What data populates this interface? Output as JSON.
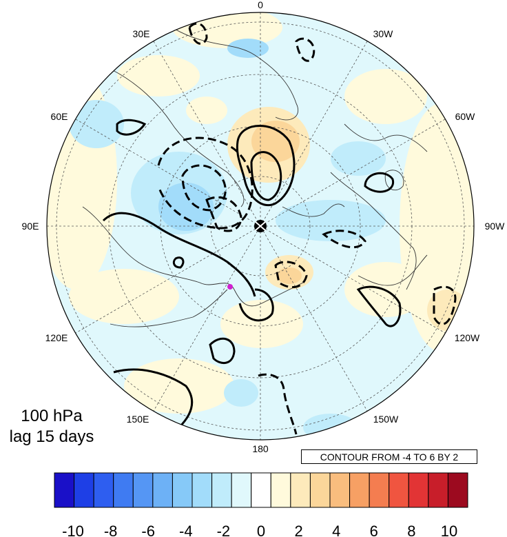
{
  "figure": {
    "title_lines": [
      "100 hPa",
      "lag 15 days"
    ],
    "contour_info": "CONTOUR FROM -4 TO 6 BY 2",
    "projection": "north-polar-stereographic",
    "grid": "dashed meridians every 30 deg, dashed latitude circles",
    "longitude_labels": [
      {
        "text": "0",
        "lon": 0
      },
      {
        "text": "30E",
        "lon": 30
      },
      {
        "text": "60E",
        "lon": 60
      },
      {
        "text": "90E",
        "lon": 90
      },
      {
        "text": "120E",
        "lon": 120
      },
      {
        "text": "150E",
        "lon": 150
      },
      {
        "text": "180",
        "lon": 180
      },
      {
        "text": "150W",
        "lon": -150
      },
      {
        "text": "120W",
        "lon": -120
      },
      {
        "text": "90W",
        "lon": -90
      },
      {
        "text": "60W",
        "lon": -60
      },
      {
        "text": "30W",
        "lon": -30
      }
    ],
    "marker_color": "#d020d0"
  },
  "colorbar": {
    "ticks": [
      "-10",
      "-8",
      "-6",
      "-4",
      "-2",
      "0",
      "2",
      "4",
      "6",
      "8",
      "10"
    ],
    "colors": [
      "#1a10c8",
      "#1e3fe6",
      "#2e5ef0",
      "#3f7bf2",
      "#5596f4",
      "#6db1f6",
      "#86c9f8",
      "#a2dcfa",
      "#c0ecfb",
      "#e0f8fc",
      "#ffffff",
      "#fffadc",
      "#fdeabb",
      "#fbd69a",
      "#f9bd7e",
      "#f7a064",
      "#f47d50",
      "#f05540",
      "#e23435",
      "#c81e2a",
      "#9c0a1f"
    ]
  }
}
